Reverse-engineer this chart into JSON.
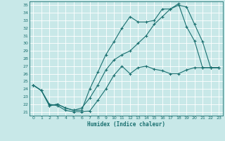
{
  "xlabel": "Humidex (Indice chaleur)",
  "xlim": [
    -0.5,
    23.5
  ],
  "ylim": [
    20.5,
    35.5
  ],
  "xticks": [
    0,
    1,
    2,
    3,
    4,
    5,
    6,
    7,
    8,
    9,
    10,
    11,
    12,
    13,
    14,
    15,
    16,
    17,
    18,
    19,
    20,
    21,
    22,
    23
  ],
  "yticks": [
    21,
    22,
    23,
    24,
    25,
    26,
    27,
    28,
    29,
    30,
    31,
    32,
    33,
    34,
    35
  ],
  "bg_color": "#c8e8e8",
  "line_color": "#1a7070",
  "grid_color": "#ffffff",
  "curve1_x": [
    0,
    1,
    2,
    3,
    4,
    5,
    6,
    7,
    8,
    9,
    10,
    11,
    12,
    13,
    14,
    15,
    16,
    17,
    18,
    19,
    20,
    21,
    22,
    23
  ],
  "curve1_y": [
    24.5,
    23.8,
    22.0,
    21.8,
    21.2,
    21.0,
    21.0,
    21.1,
    22.5,
    24.0,
    25.8,
    27.0,
    26.0,
    26.8,
    27.0,
    26.6,
    26.4,
    26.0,
    26.0,
    26.5,
    26.8,
    26.8,
    26.8,
    26.8
  ],
  "curve2_x": [
    0,
    1,
    2,
    3,
    4,
    5,
    6,
    7,
    8,
    9,
    10,
    11,
    12,
    13,
    14,
    15,
    16,
    17,
    18,
    19,
    20,
    21,
    22,
    23
  ],
  "curve2_y": [
    24.5,
    23.8,
    21.8,
    22.0,
    21.5,
    21.2,
    21.2,
    24.0,
    26.2,
    28.5,
    30.2,
    32.0,
    33.5,
    32.8,
    32.8,
    33.0,
    34.5,
    34.5,
    35.0,
    34.8,
    32.5,
    30.2,
    26.8,
    26.8
  ],
  "curve3_x": [
    0,
    1,
    2,
    3,
    4,
    5,
    6,
    7,
    8,
    9,
    10,
    11,
    12,
    13,
    14,
    15,
    16,
    17,
    18,
    19,
    20,
    21,
    22,
    23
  ],
  "curve3_y": [
    24.5,
    23.8,
    21.8,
    22.0,
    21.5,
    21.2,
    21.5,
    22.8,
    24.5,
    26.5,
    27.8,
    28.5,
    29.0,
    30.0,
    31.0,
    32.5,
    33.5,
    34.5,
    35.2,
    32.2,
    30.3,
    26.8,
    26.8,
    26.8
  ]
}
